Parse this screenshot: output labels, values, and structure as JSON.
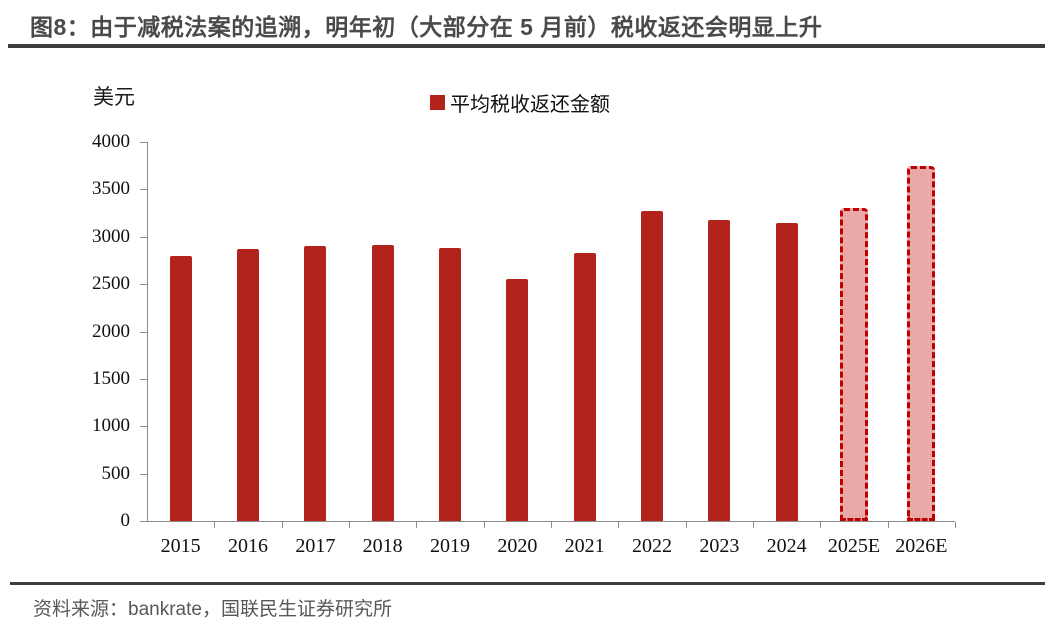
{
  "header": {
    "title": "图8：由于减税法案的追溯，明年初（大部分在 5 月前）税收返还会明显上升"
  },
  "chart_data": {
    "type": "bar",
    "title": "图8：由于减税法案的追溯，明年初（大部分在 5 月前）税收返还会明显上升",
    "unit_label": "美元",
    "legend": "平均税收返还金额",
    "legend_position": "top-center",
    "categories": [
      "2015",
      "2016",
      "2017",
      "2018",
      "2019",
      "2020",
      "2021",
      "2022",
      "2023",
      "2024",
      "2025E",
      "2026E"
    ],
    "values": [
      2800,
      2870,
      2900,
      2910,
      2880,
      2550,
      2830,
      3270,
      3180,
      3150,
      3300,
      3750
    ],
    "estimated_categories": [
      "2025E",
      "2026E"
    ],
    "ylim": [
      0,
      4000
    ],
    "ytick_step": 500,
    "yticks": [
      4000,
      3500,
      3000,
      2500,
      2000,
      1500,
      1000,
      500,
      0
    ],
    "grid": false,
    "bar_color": "#b2231c",
    "estimate_fill_color": "#e9a9a9",
    "estimate_border_color": "#c00000"
  },
  "footer": {
    "source": "资料来源：bankrate，国联民生证券研究所"
  }
}
